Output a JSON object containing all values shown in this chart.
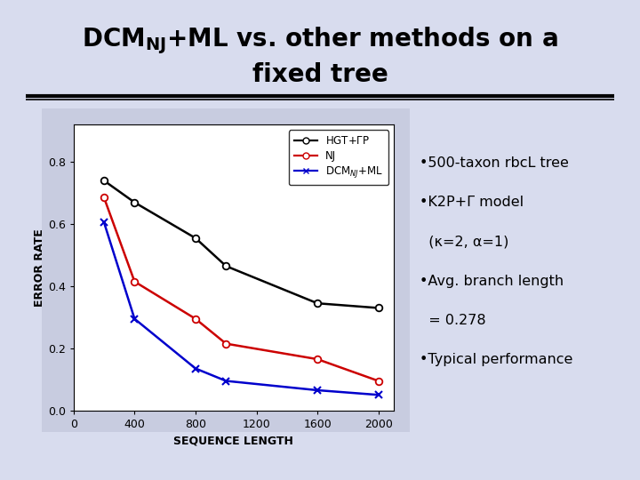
{
  "bg_color": "#d8dcee",
  "plot_bg": "#ffffff",
  "plot_panel_bg": "#c8cce0",
  "xlabel": "SEQUENCE LENGTH",
  "ylabel": "ERROR RATE",
  "xlim": [
    0,
    2100
  ],
  "ylim": [
    0.0,
    0.92
  ],
  "xticks": [
    0,
    400,
    800,
    1200,
    1600,
    2000
  ],
  "yticks": [
    0.0,
    0.2,
    0.4,
    0.6,
    0.8
  ],
  "hgt_x": [
    200,
    400,
    800,
    1000,
    1600,
    2000
  ],
  "hgt_y": [
    0.74,
    0.67,
    0.555,
    0.465,
    0.345,
    0.33
  ],
  "nj_x": [
    200,
    400,
    800,
    1000,
    1600,
    2000
  ],
  "nj_y": [
    0.685,
    0.415,
    0.295,
    0.215,
    0.165,
    0.095
  ],
  "dcm_x": [
    200,
    400,
    800,
    1000,
    1600,
    2000
  ],
  "dcm_y": [
    0.605,
    0.295,
    0.135,
    0.095,
    0.065,
    0.05
  ],
  "hgt_color": "#000000",
  "nj_color": "#cc0000",
  "dcm_color": "#0000cc",
  "bullet_lines": [
    "•500-taxon rbcL tree",
    "•K2P+Γ model",
    "  (κ=2, α=1)",
    "•Avg. branch length",
    "  = 0.278",
    "•Typical performance"
  ],
  "bullet_fontsize": 11.5,
  "axis_label_fontsize": 9,
  "tick_fontsize": 9,
  "legend_fontsize": 8.5,
  "title_fontsize": 20
}
